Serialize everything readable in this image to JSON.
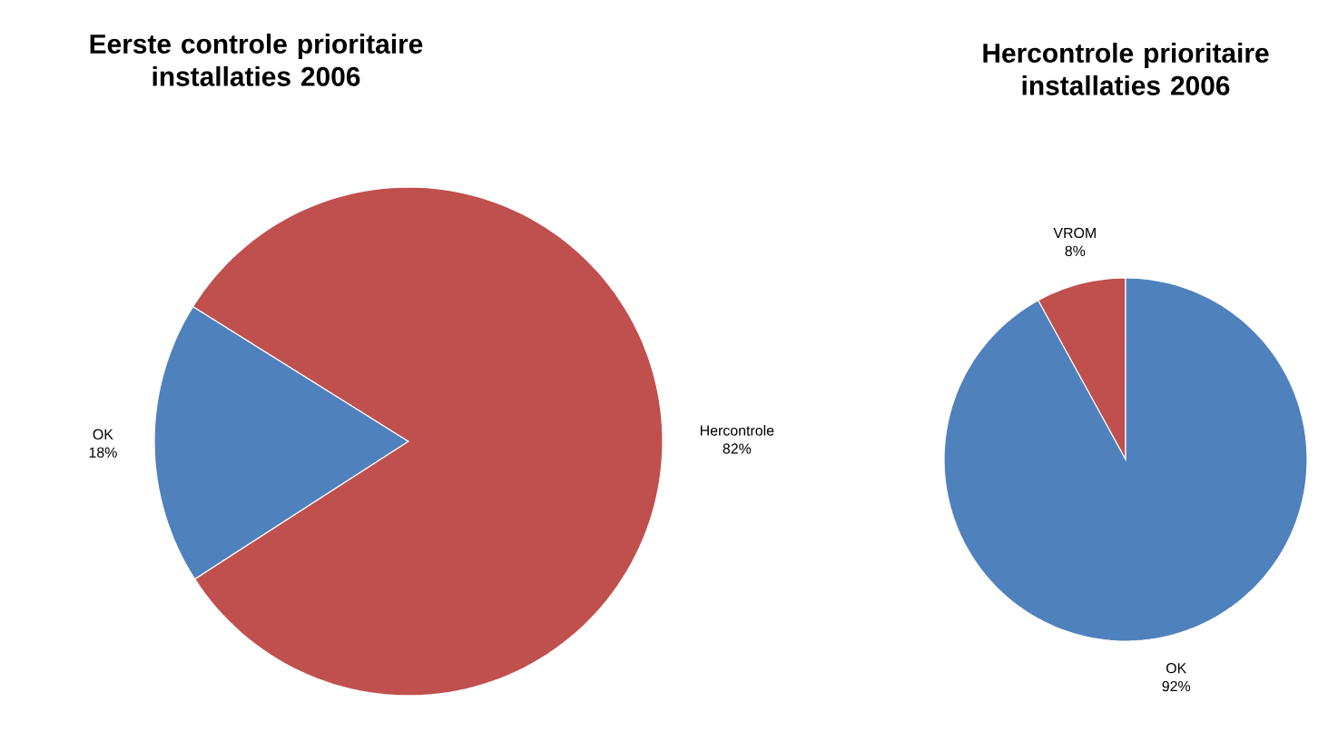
{
  "chart_data": [
    {
      "type": "pie",
      "title": "Eerste controle prioritaire installaties 2006",
      "categories": [
        "OK",
        "Hercontrole"
      ],
      "values": [
        18,
        82
      ],
      "colors": [
        "#4f81bd",
        "#c0504d"
      ],
      "value_labels": [
        "18%",
        "82%"
      ]
    },
    {
      "type": "pie",
      "title": "Hercontrole prioritaire installaties 2006",
      "categories": [
        "VROM",
        "OK"
      ],
      "values": [
        8,
        92
      ],
      "colors": [
        "#c0504d",
        "#4f81bd"
      ],
      "value_labels": [
        "8%",
        "92%"
      ]
    }
  ]
}
